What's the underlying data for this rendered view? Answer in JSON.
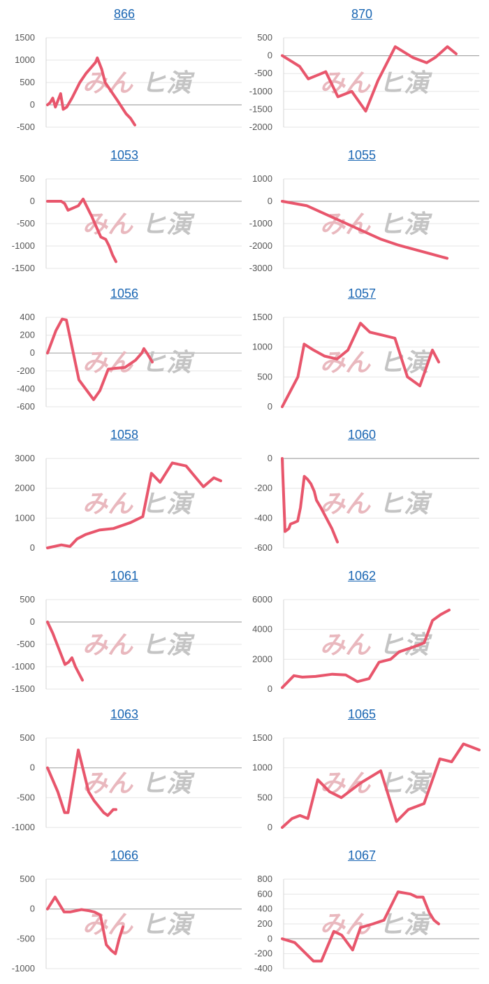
{
  "chart_data": [
    {
      "type": "line",
      "title": "866",
      "ylim": [
        -500,
        1500
      ],
      "yticks": [
        1500,
        1000,
        500,
        0,
        -500
      ],
      "x": [
        0,
        3,
        6,
        9,
        15,
        18,
        22,
        28,
        37,
        44,
        55,
        57,
        62,
        66,
        80,
        90,
        95,
        100
      ],
      "y": [
        0,
        50,
        150,
        -50,
        250,
        -100,
        -50,
        150,
        500,
        700,
        950,
        1050,
        800,
        500,
        100,
        -200,
        -300,
        -450
      ],
      "color": "#e8566c",
      "grid": true
    },
    {
      "type": "line",
      "title": "870",
      "ylim": [
        -2000,
        500
      ],
      "yticks": [
        500,
        0,
        -500,
        -1000,
        -1500,
        -2000
      ],
      "x": [
        0,
        5,
        10,
        15,
        20,
        25,
        32,
        40,
        48,
        55,
        65,
        75,
        83,
        88,
        95,
        100
      ],
      "y": [
        0,
        -150,
        -300,
        -650,
        -550,
        -450,
        -1150,
        -1000,
        -1550,
        -700,
        250,
        -50,
        -200,
        -50,
        250,
        50
      ],
      "color": "#e8566c",
      "grid": true
    },
    {
      "type": "line",
      "title": "1053",
      "ylim": [
        -1500,
        500
      ],
      "yticks": [
        500,
        0,
        -500,
        -1000,
        -1500
      ],
      "x": [
        0,
        20,
        25,
        30,
        45,
        52,
        65,
        75,
        78,
        85,
        90,
        95,
        100
      ],
      "y": [
        0,
        0,
        -50,
        -200,
        -100,
        50,
        -350,
        -700,
        -800,
        -850,
        -1000,
        -1200,
        -1350
      ],
      "color": "#e8566c",
      "grid": true
    },
    {
      "type": "line",
      "title": "1055",
      "ylim": [
        -3000,
        1000
      ],
      "yticks": [
        1000,
        0,
        -1000,
        -2000,
        -3000
      ],
      "x": [
        0,
        15,
        30,
        45,
        60,
        70,
        80,
        90,
        100
      ],
      "y": [
        0,
        -200,
        -700,
        -1200,
        -1700,
        -1950,
        -2150,
        -2350,
        -2550
      ],
      "color": "#e8566c",
      "grid": true
    },
    {
      "type": "line",
      "title": "1056",
      "ylim": [
        -600,
        400
      ],
      "yticks": [
        400,
        200,
        0,
        -200,
        -400,
        -600
      ],
      "x": [
        0,
        8,
        14,
        18,
        30,
        44,
        50,
        58,
        65,
        74,
        84,
        90,
        92,
        96,
        100
      ],
      "y": [
        0,
        250,
        380,
        370,
        -300,
        -520,
        -420,
        -180,
        -170,
        -160,
        -80,
        0,
        50,
        -20,
        -100
      ],
      "color": "#e8566c",
      "grid": true
    },
    {
      "type": "line",
      "title": "1057",
      "ylim": [
        0,
        1500
      ],
      "yticks": [
        1500,
        1000,
        500,
        0
      ],
      "x": [
        0,
        5,
        10,
        14,
        20,
        27,
        35,
        42,
        50,
        56,
        64,
        72,
        80,
        88,
        96,
        100
      ],
      "y": [
        0,
        250,
        500,
        1050,
        950,
        850,
        800,
        950,
        1400,
        1250,
        1200,
        1150,
        500,
        350,
        950,
        750
      ],
      "color": "#e8566c",
      "grid": true
    },
    {
      "type": "line",
      "title": "1058",
      "ylim": [
        0,
        3000
      ],
      "yticks": [
        3000,
        2000,
        1000,
        0
      ],
      "x": [
        0,
        8,
        13,
        17,
        22,
        30,
        38,
        48,
        55,
        60,
        65,
        72,
        80,
        90,
        96,
        100
      ],
      "y": [
        0,
        100,
        50,
        300,
        450,
        600,
        650,
        850,
        1050,
        2500,
        2200,
        2850,
        2750,
        2050,
        2350,
        2250
      ],
      "color": "#e8566c",
      "grid": true
    },
    {
      "type": "line",
      "title": "1060",
      "ylim": [
        -600,
        0
      ],
      "yticks": [
        0,
        -200,
        -400,
        -600
      ],
      "x": [
        0,
        5,
        12,
        15,
        22,
        28,
        33,
        40,
        46,
        52,
        58,
        62,
        70,
        80,
        90,
        100
      ],
      "y": [
        0,
        -490,
        -470,
        -440,
        -430,
        -420,
        -330,
        -120,
        -140,
        -170,
        -220,
        -280,
        -330,
        -400,
        -470,
        -560
      ],
      "color": "#e8566c",
      "grid": true
    },
    {
      "type": "line",
      "title": "1061",
      "ylim": [
        -1500,
        500
      ],
      "yticks": [
        500,
        0,
        -500,
        -1000,
        -1500
      ],
      "x": [
        0,
        15,
        30,
        50,
        60,
        70,
        80,
        100
      ],
      "y": [
        0,
        -250,
        -550,
        -950,
        -900,
        -800,
        -1000,
        -1300
      ],
      "color": "#e8566c",
      "grid": true
    },
    {
      "type": "line",
      "title": "1062",
      "ylim": [
        0,
        6000
      ],
      "yticks": [
        6000,
        4000,
        2000,
        0
      ],
      "x": [
        0,
        7,
        12,
        20,
        30,
        38,
        45,
        52,
        58,
        65,
        70,
        78,
        85,
        90,
        95,
        100
      ],
      "y": [
        100,
        900,
        800,
        850,
        1000,
        950,
        500,
        700,
        1800,
        2000,
        2500,
        2800,
        3100,
        4600,
        5000,
        5300
      ],
      "color": "#e8566c",
      "grid": true
    },
    {
      "type": "line",
      "title": "1063",
      "ylim": [
        -1000,
        500
      ],
      "yticks": [
        500,
        0,
        -500,
        -1000
      ],
      "x": [
        0,
        15,
        25,
        30,
        45,
        60,
        68,
        75,
        82,
        88,
        92,
        96,
        100
      ],
      "y": [
        0,
        -400,
        -750,
        -750,
        300,
        -400,
        -550,
        -650,
        -750,
        -800,
        -750,
        -700,
        -700
      ],
      "color": "#e8566c",
      "grid": true
    },
    {
      "type": "line",
      "title": "1065",
      "ylim": [
        0,
        1500
      ],
      "yticks": [
        1500,
        1000,
        500,
        0
      ],
      "x": [
        0,
        5,
        9,
        13,
        18,
        24,
        30,
        40,
        50,
        58,
        64,
        72,
        80,
        86,
        92,
        96,
        100
      ],
      "y": [
        0,
        150,
        200,
        150,
        800,
        600,
        500,
        750,
        950,
        100,
        300,
        400,
        1150,
        1100,
        1400,
        1350,
        1300
      ],
      "color": "#e8566c",
      "grid": true
    },
    {
      "type": "line",
      "title": "1066",
      "ylim": [
        -1000,
        500
      ],
      "yticks": [
        500,
        0,
        -500,
        -1000
      ],
      "x": [
        0,
        10,
        22,
        30,
        45,
        55,
        62,
        70,
        78,
        85,
        90,
        95,
        100
      ],
      "y": [
        0,
        200,
        -50,
        -50,
        -10,
        -30,
        -50,
        -100,
        -600,
        -700,
        -750,
        -500,
        -300
      ],
      "color": "#e8566c",
      "grid": true
    },
    {
      "type": "line",
      "title": "1067",
      "ylim": [
        -400,
        800
      ],
      "yticks": [
        800,
        600,
        400,
        200,
        0,
        -200,
        -400
      ],
      "x": [
        0,
        8,
        20,
        25,
        33,
        38,
        45,
        50,
        58,
        65,
        74,
        82,
        86,
        90,
        94,
        97,
        100
      ],
      "y": [
        0,
        -50,
        -300,
        -300,
        100,
        50,
        -150,
        150,
        200,
        250,
        630,
        600,
        560,
        560,
        350,
        250,
        200
      ],
      "color": "#e8566c",
      "grid": true
    }
  ],
  "watermark": {
    "part_a": "みん",
    "part_b": "ヒ演"
  }
}
